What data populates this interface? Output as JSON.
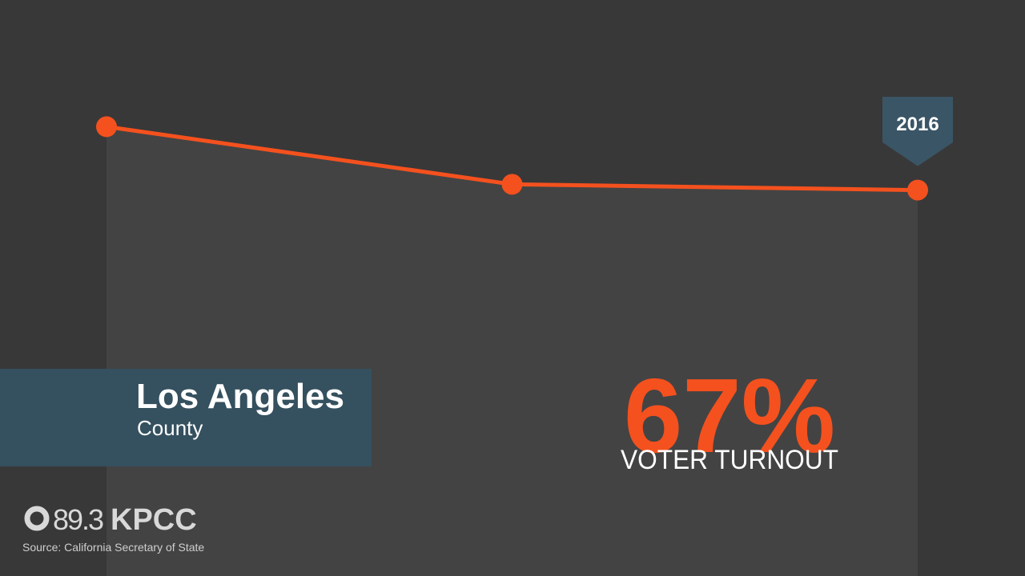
{
  "chart_data": {
    "type": "line",
    "categories": [
      null,
      null,
      "2016"
    ],
    "values": [
      78,
      68,
      67
    ],
    "value_labels": [
      null,
      null,
      "67%"
    ],
    "ylim": [
      0,
      100
    ],
    "color": "#f4511e",
    "area_color": "#434343",
    "subtitle": "VOTER TURNOUT"
  },
  "banner": {
    "title": "Los Angeles",
    "subtitle": "County"
  },
  "logo": {
    "frequency": "89.3",
    "name": "KPCC"
  },
  "source": "Source: California Secretary of State"
}
